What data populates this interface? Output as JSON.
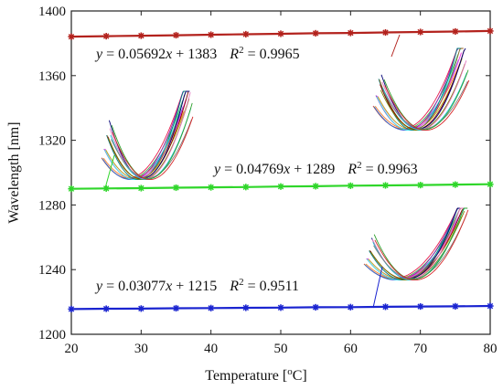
{
  "chart_data": {
    "type": "line",
    "xlabel": "Temperature [°C]",
    "xlabel_parts": {
      "text": "Temperature [",
      "sup": "o",
      "unit": "C]"
    },
    "ylabel": "Wavelength [nm]",
    "xlim": [
      20,
      80
    ],
    "ylim": [
      1200,
      1400
    ],
    "xticks": [
      20,
      30,
      40,
      50,
      60,
      70,
      80
    ],
    "yticks": [
      1200,
      1240,
      1280,
      1320,
      1360,
      1400
    ],
    "grid": false,
    "x": [
      20,
      25,
      30,
      35,
      40,
      45,
      50,
      55,
      60,
      65,
      70,
      75,
      80
    ],
    "series": [
      {
        "color": "#b3221d",
        "slope": 0.05692,
        "intercept": 1383,
        "r2": "0.9965",
        "values": [
          1384.1,
          1384.4,
          1384.7,
          1385.0,
          1385.3,
          1385.6,
          1385.9,
          1386.2,
          1386.4,
          1386.7,
          1387.0,
          1387.3,
          1387.6
        ],
        "equation": {
          "y": "y",
          "eq": " = 0.05692",
          "x": "x",
          "rest": " + 1383",
          "R": "R",
          "sup": "2",
          "r2text": " = 0.9965"
        }
      },
      {
        "color": "#2fd62a",
        "slope": 0.04769,
        "intercept": 1289,
        "r2": "0.9963",
        "values": [
          1290.0,
          1290.2,
          1290.4,
          1290.7,
          1290.9,
          1291.1,
          1291.4,
          1291.6,
          1291.9,
          1292.1,
          1292.3,
          1292.6,
          1292.8
        ],
        "equation": {
          "y": "y",
          "eq": " = 0.04769",
          "x": "x",
          "rest": " + 1289",
          "R": "R",
          "sup": "2",
          "r2text": " = 0.9963"
        }
      },
      {
        "color": "#1a24d0",
        "slope": 0.03077,
        "intercept": 1215,
        "r2": "0.9511",
        "values": [
          1215.6,
          1215.8,
          1215.9,
          1216.1,
          1216.2,
          1216.4,
          1216.5,
          1216.7,
          1216.8,
          1217.0,
          1217.2,
          1217.3,
          1217.5
        ],
        "equation": {
          "y": "y",
          "eq": " = 0.03077",
          "x": "x",
          "rest": " + 1215",
          "R": "R",
          "sup": "2",
          "r2text": " = 0.9511"
        }
      }
    ],
    "inset_spectra_colors": [
      "#e6194b",
      "#3cb44b",
      "#4363d8",
      "#f58231",
      "#911eb4",
      "#46f0f0",
      "#f032e6",
      "#bcb61a",
      "#008080",
      "#9a6324",
      "#800000",
      "#808000",
      "#000075",
      "#e377c2",
      "#17becf",
      "#7f7f7f",
      "#2ca02c",
      "#d62728"
    ]
  }
}
